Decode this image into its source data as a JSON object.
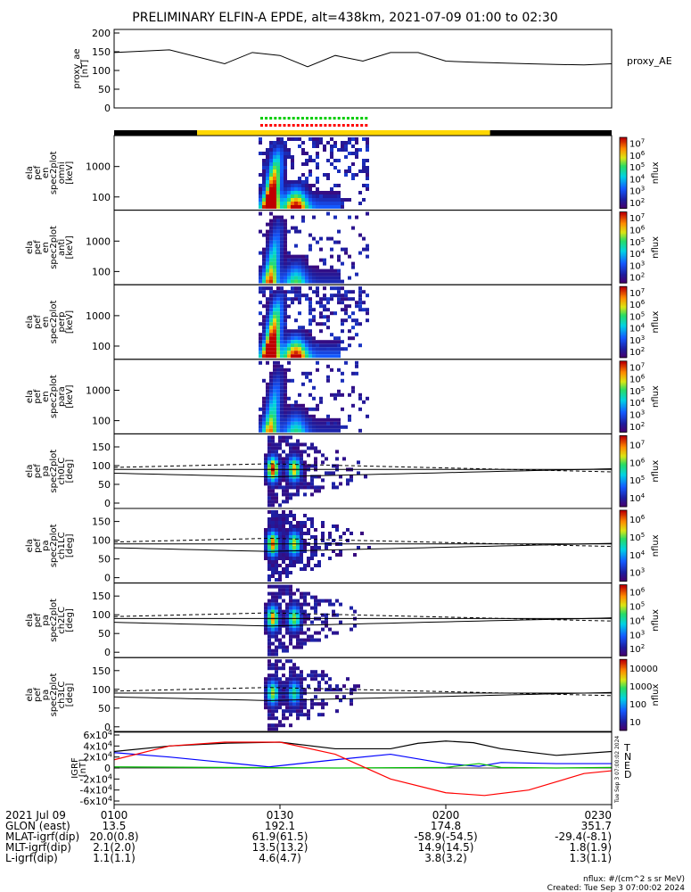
{
  "title": "PRELIMINARY ELFIN-A EPDE, alt=438km, 2021-07-09 01:00 to 02:30",
  "footer": {
    "units": "nflux: #/(cm^2 s sr MeV)",
    "created": "Created: Tue Sep  3 07:00:02 2024",
    "side_stamp": "Tue Sep  3 07:00:02 2024"
  },
  "ephemeris": {
    "rows": [
      {
        "label": "2021 Jul 09",
        "values": [
          "0100",
          "0130",
          "0200",
          "0230"
        ]
      },
      {
        "label": "GLON (east)",
        "values": [
          "13.5",
          "192.1",
          "174.8",
          "351.7"
        ]
      },
      {
        "label": "MLAT-igrf(dip)",
        "values": [
          "20.0(0.8)",
          "61.9(61.5)",
          "-58.9(-54.5)",
          "-29.4(-8.1)"
        ]
      },
      {
        "label": "MLT-igrf(dip)",
        "values": [
          "2.1(2.0)",
          "13.5(13.2)",
          "14.9(14.5)",
          "1.8(1.9)"
        ]
      },
      {
        "label": "L-igrf(dip)",
        "values": [
          "1.1(1.1)",
          "4.6(4.7)",
          "3.8(3.2)",
          "1.3(1.1)"
        ]
      }
    ]
  },
  "colors": {
    "sci_bar_black": "#000000",
    "sci_bar_yellow": "#ffd700",
    "marker_green": "#00cc00",
    "marker_red": "#ff0000",
    "igrf_T": "#000000",
    "igrf_N": "#0000ff",
    "igrf_E": "#00bb00",
    "igrf_D": "#ff0000"
  },
  "chart_data": [
    {
      "type": "line",
      "ylabel": "proxy_ae [nT]",
      "legend": "proxy_AE",
      "ylim": [
        0,
        200
      ],
      "yticks": [
        "0",
        "50",
        "100",
        "150",
        "200"
      ],
      "x_minutes": [
        0,
        10,
        20,
        25,
        30,
        35,
        40,
        45,
        50,
        55,
        60,
        65,
        70,
        75,
        80,
        85,
        90
      ],
      "values": [
        148,
        155,
        118,
        148,
        140,
        110,
        140,
        125,
        148,
        148,
        125,
        122,
        120,
        118,
        116,
        115,
        118
      ]
    },
    {
      "type": "heatmap",
      "ylabel": "ela pef en spec2plot omni [keV]",
      "yticks": [
        "100",
        "1000"
      ],
      "colorbar": {
        "label": "nflux",
        "ticks": [
          "10^2",
          "10^3",
          "10^4",
          "10^5",
          "10^6",
          "10^7"
        ]
      }
    },
    {
      "type": "heatmap",
      "ylabel": "ela pef en spec2plot anti [keV]",
      "yticks": [
        "100",
        "1000"
      ],
      "colorbar": {
        "label": "nflux",
        "ticks": [
          "10^2",
          "10^3",
          "10^4",
          "10^5",
          "10^6",
          "10^7"
        ]
      }
    },
    {
      "type": "heatmap",
      "ylabel": "ela pef en spec2plot perp [keV]",
      "yticks": [
        "100",
        "1000"
      ],
      "colorbar": {
        "label": "nflux",
        "ticks": [
          "10^2",
          "10^3",
          "10^4",
          "10^5",
          "10^6",
          "10^7"
        ]
      }
    },
    {
      "type": "heatmap",
      "ylabel": "ela pef en spec2plot para [keV]",
      "yticks": [
        "100",
        "1000"
      ],
      "colorbar": {
        "label": "nflux",
        "ticks": [
          "10^2",
          "10^3",
          "10^4",
          "10^5",
          "10^6",
          "10^7"
        ]
      }
    },
    {
      "type": "heatmap",
      "ylabel": "ela pef pa spec2plot ch0LC [deg]",
      "yticks": [
        "0",
        "50",
        "100",
        "150"
      ],
      "colorbar": {
        "label": "nflux",
        "ticks": [
          "10^4",
          "10^5",
          "10^6",
          "10^7"
        ]
      }
    },
    {
      "type": "heatmap",
      "ylabel": "ela pef pa spec2plot ch1LC [deg]",
      "yticks": [
        "0",
        "50",
        "100",
        "150"
      ],
      "colorbar": {
        "label": "nflux",
        "ticks": [
          "10^3",
          "10^4",
          "10^5",
          "10^6"
        ]
      }
    },
    {
      "type": "heatmap",
      "ylabel": "ela pef pa spec2plot ch2LC [deg]",
      "yticks": [
        "0",
        "50",
        "100",
        "150"
      ],
      "colorbar": {
        "label": "nflux",
        "ticks": [
          "10^2",
          "10^3",
          "10^4",
          "10^5",
          "10^6"
        ]
      }
    },
    {
      "type": "heatmap",
      "ylabel": "ela pef pa spec2plot ch3LC [deg]",
      "yticks": [
        "0",
        "50",
        "100",
        "150"
      ],
      "colorbar": {
        "label": "nflux",
        "ticks": [
          "10",
          "100",
          "1000",
          "10000"
        ]
      }
    },
    {
      "type": "line",
      "ylabel": "IGRF [nT]",
      "yticks": [
        "-6x10^4",
        "-4x10^4",
        "-2x10^4",
        "0",
        "2x10^4",
        "4x10^4",
        "6x10^4"
      ],
      "ylim": [
        -60000,
        60000
      ],
      "series": [
        {
          "name": "T",
          "x_minutes": [
            0,
            10,
            20,
            30,
            40,
            50,
            55,
            60,
            65,
            70,
            80,
            90
          ],
          "values": [
            30000,
            40000,
            45000,
            47000,
            35000,
            35000,
            45000,
            49000,
            46000,
            35000,
            23000,
            30000
          ]
        },
        {
          "name": "N",
          "x_minutes": [
            0,
            10,
            20,
            28,
            40,
            50,
            60,
            66,
            70,
            80,
            90
          ],
          "values": [
            28000,
            20000,
            10000,
            2000,
            15000,
            25000,
            8000,
            3000,
            10000,
            8000,
            8000
          ]
        },
        {
          "name": "E",
          "x_minutes": [
            0,
            20,
            40,
            60,
            66,
            70,
            80,
            90
          ],
          "values": [
            2000,
            1000,
            0,
            1000,
            8000,
            1000,
            0,
            1000
          ]
        },
        {
          "name": "D",
          "x_minutes": [
            0,
            10,
            20,
            30,
            40,
            50,
            60,
            67,
            75,
            85,
            90
          ],
          "values": [
            15000,
            40000,
            47000,
            47000,
            25000,
            -20000,
            -45000,
            -50000,
            -40000,
            -10000,
            -5000
          ]
        }
      ]
    }
  ]
}
